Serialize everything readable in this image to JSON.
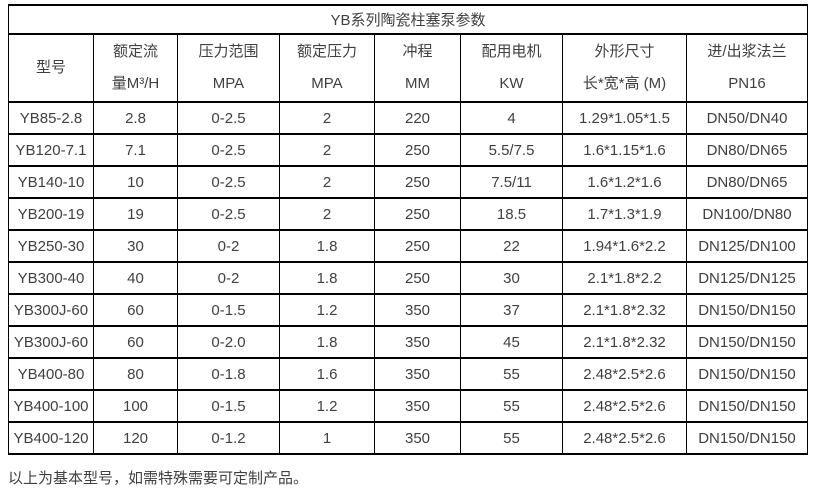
{
  "table": {
    "title": "YB系列陶瓷柱塞泵参数",
    "columns": [
      {
        "id": "model",
        "line1": "型号",
        "line2": ""
      },
      {
        "id": "rated-flow",
        "line1": "额定流",
        "line2": "量M³/H"
      },
      {
        "id": "pressure-range",
        "line1": "压力范围",
        "line2": "MPA"
      },
      {
        "id": "rated-pressure",
        "line1": "额定压力",
        "line2": "MPA"
      },
      {
        "id": "stroke",
        "line1": "冲程",
        "line2": "MM"
      },
      {
        "id": "motor-power",
        "line1": "配用电机",
        "line2": "KW"
      },
      {
        "id": "dimensions",
        "line1": "外形尺寸",
        "line2": "长*宽*高 (M)"
      },
      {
        "id": "flange",
        "line1": "进/出浆法兰",
        "line2": "PN16"
      }
    ],
    "rows": [
      [
        "YB85-2.8",
        "2.8",
        "0-2.5",
        "2",
        "220",
        "4",
        "1.29*1.05*1.5",
        "DN50/DN40"
      ],
      [
        "YB120-7.1",
        "7.1",
        "0-2.5",
        "2",
        "250",
        "5.5/7.5",
        "1.6*1.15*1.6",
        "DN80/DN65"
      ],
      [
        "YB140-10",
        "10",
        "0-2.5",
        "2",
        "250",
        "7.5/11",
        "1.6*1.2*1.6",
        "DN80/DN65"
      ],
      [
        "YB200-19",
        "19",
        "0-2.5",
        "2",
        "250",
        "18.5",
        "1.7*1.3*1.9",
        "DN100/DN80"
      ],
      [
        "YB250-30",
        "30",
        "0-2",
        "1.8",
        "250",
        "22",
        "1.94*1.6*2.2",
        "DN125/DN100"
      ],
      [
        "YB300-40",
        "40",
        "0-2",
        "1.8",
        "250",
        "30",
        "2.1*1.8*2.2",
        "DN125/DN125"
      ],
      [
        "YB300J-60",
        "60",
        "0-1.5",
        "1.2",
        "350",
        "37",
        "2.1*1.8*2.32",
        "DN150/DN150"
      ],
      [
        "YB300J-60",
        "60",
        "0-2.0",
        "1.8",
        "350",
        "45",
        "2.1*1.8*2.32",
        "DN150/DN150"
      ],
      [
        "YB400-80",
        "80",
        "0-1.8",
        "1.6",
        "350",
        "55",
        "2.48*2.5*2.6",
        "DN150/DN150"
      ],
      [
        "YB400-100",
        "100",
        "0-1.5",
        "1.2",
        "350",
        "55",
        "2.48*2.5*2.6",
        "DN150/DN150"
      ],
      [
        "YB400-120",
        "120",
        "0-1.2",
        "1",
        "350",
        "55",
        "2.48*2.5*2.6",
        "DN150/DN150"
      ]
    ]
  },
  "footer": {
    "note": "以上为基本型号，如需特殊需要可定制产品。"
  }
}
